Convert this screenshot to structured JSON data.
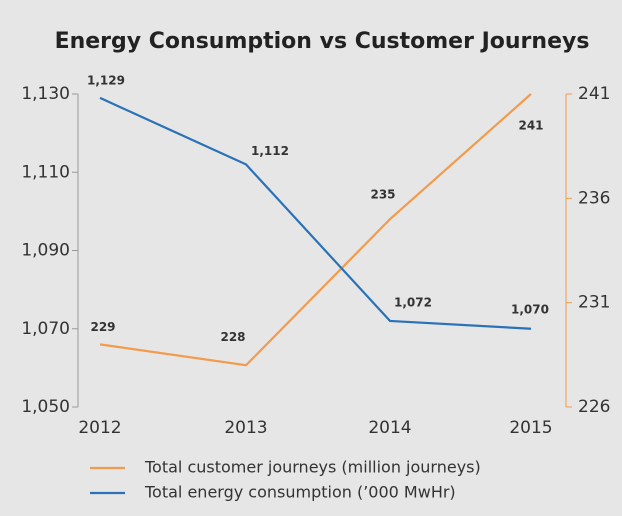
{
  "chart_data": {
    "type": "line",
    "title": "Energy Consumption vs Customer Journeys",
    "categories": [
      "2012",
      "2013",
      "2014",
      "2015"
    ],
    "series": [
      {
        "name": "Total customer journeys (million journeys)",
        "color": "#f29b4c",
        "axis": "y2",
        "values": [
          229,
          228,
          235,
          241
        ]
      },
      {
        "name": "Total energy consumption (’000 MwHr)",
        "color": "#2a72b8",
        "values": [
          1129,
          1112,
          1072,
          1070
        ],
        "value_labels": [
          "1,129",
          "1,112",
          "1,072",
          "1,070"
        ]
      }
    ],
    "ylim": [
      1050,
      1130
    ],
    "yticks": [
      {
        "value": 1050,
        "label": "1,050"
      },
      {
        "value": 1070,
        "label": "1,070"
      },
      {
        "value": 1090,
        "label": "1,090"
      },
      {
        "value": 1110,
        "label": "1,110"
      },
      {
        "value": 1130,
        "label": "1,130"
      }
    ],
    "y2lim": [
      226,
      241
    ],
    "y2ticks": [
      226,
      231,
      236,
      241
    ],
    "y2color": "#f29b4c"
  }
}
